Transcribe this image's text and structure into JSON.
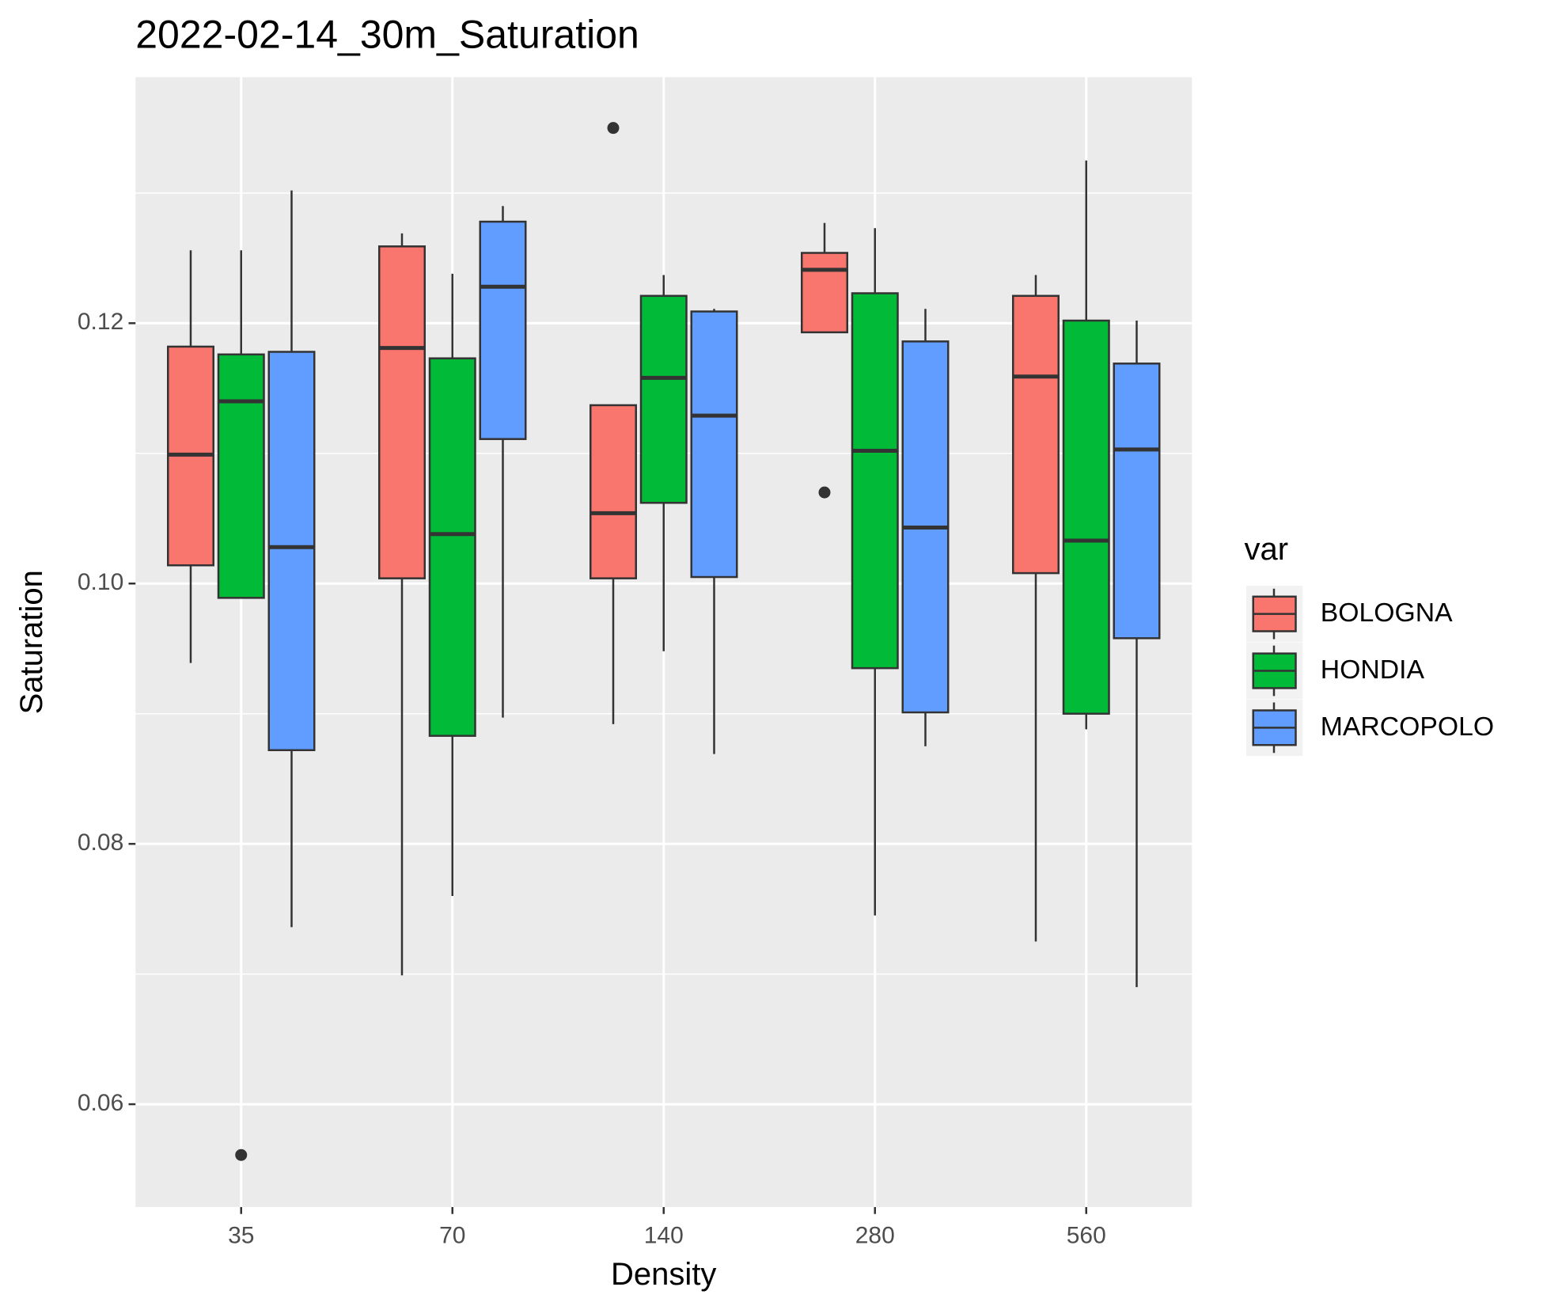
{
  "chart_data": {
    "type": "boxplot",
    "title": "2022-02-14_30m_Saturation",
    "x_label": "Density",
    "y_label": "Saturation",
    "legend_title": "var",
    "categories": [
      "35",
      "70",
      "140",
      "280",
      "560"
    ],
    "ylim": [
      0.0521,
      0.1389
    ],
    "yticks": [
      0.06,
      0.08,
      {
        "value": 0.1,
        "label": "0.10"
      },
      0.12
    ],
    "y_minor_gridlines": [
      0.07,
      0.09,
      0.11,
      0.13
    ],
    "grid": true,
    "legend_position": "right",
    "series": [
      {
        "name": "BOLOGNA",
        "color": "#F8766D",
        "values": [
          {
            "min": 0.0939,
            "q1": 0.1014,
            "median": 0.1099,
            "q3": 0.1182,
            "max": 0.1256
          },
          {
            "min": 0.0699,
            "q1": 0.1004,
            "median": 0.1181,
            "q3": 0.1259,
            "max": 0.1269
          },
          {
            "min": 0.0892,
            "q1": 0.1004,
            "median": 0.1054,
            "q3": 0.1137,
            "max": 0.1137,
            "outliers": [
              0.135
            ]
          },
          {
            "min": 0.1193,
            "q1": 0.1193,
            "median": 0.1241,
            "q3": 0.1254,
            "max": 0.1277,
            "outliers": [
              0.107
            ]
          },
          {
            "min": 0.0725,
            "q1": 0.1008,
            "median": 0.1159,
            "q3": 0.1221,
            "max": 0.1237
          }
        ]
      },
      {
        "name": "HONDIA",
        "color": "#00BA38",
        "values": [
          {
            "min": 0.0989,
            "q1": 0.0989,
            "median": 0.114,
            "q3": 0.1176,
            "max": 0.1256,
            "outliers": [
              0.0561
            ]
          },
          {
            "min": 0.076,
            "q1": 0.0883,
            "median": 0.1038,
            "q3": 0.1173,
            "max": 0.1238
          },
          {
            "min": 0.0948,
            "q1": 0.1062,
            "median": 0.1158,
            "q3": 0.1221,
            "max": 0.1237
          },
          {
            "min": 0.0745,
            "q1": 0.0935,
            "median": 0.1102,
            "q3": 0.1223,
            "max": 0.1273
          },
          {
            "min": 0.0888,
            "q1": 0.09,
            "median": 0.1033,
            "q3": 0.1202,
            "max": 0.1325
          }
        ]
      },
      {
        "name": "MARCOPOLO",
        "color": "#619CFF",
        "values": [
          {
            "min": 0.0736,
            "q1": 0.0872,
            "median": 0.1028,
            "q3": 0.1178,
            "max": 0.1302
          },
          {
            "min": 0.0897,
            "q1": 0.1111,
            "median": 0.1228,
            "q3": 0.1278,
            "max": 0.129
          },
          {
            "min": 0.0869,
            "q1": 0.1005,
            "median": 0.1129,
            "q3": 0.1209,
            "max": 0.1211
          },
          {
            "min": 0.0875,
            "q1": 0.0901,
            "median": 0.1043,
            "q3": 0.1186,
            "max": 0.1211
          },
          {
            "min": 0.069,
            "q1": 0.0958,
            "median": 0.1103,
            "q3": 0.1169,
            "max": 0.1202
          }
        ]
      }
    ]
  }
}
